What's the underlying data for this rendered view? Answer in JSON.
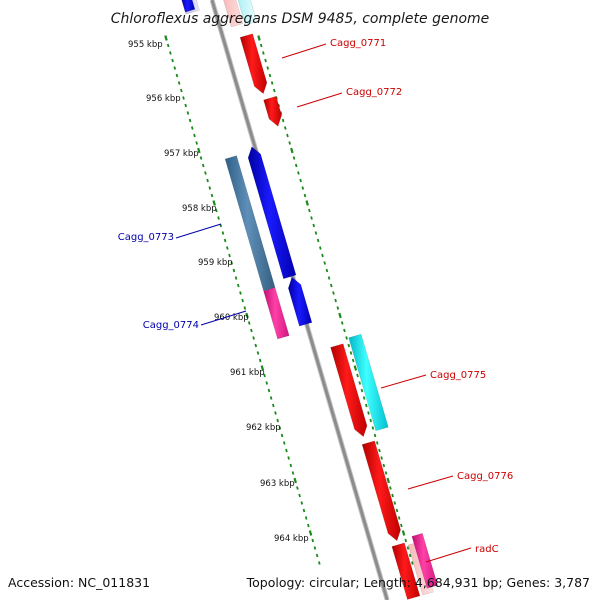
{
  "title": "Chloroflexus aggregans DSM 9485, complete genome",
  "footer": {
    "accession": "Accession: NC_011831",
    "summary": "Topology: circular; Length: 4,684,931 bp; Genes: 3,787"
  },
  "colors": {
    "backbone": "#8c8c8c",
    "tick": "#1a8a1a",
    "label_forward": "#cc0000",
    "label_reverse": "#0000aa"
  },
  "kbp_ticks": [
    {
      "label": "955 kbp",
      "kbp": 955
    },
    {
      "label": "956 kbp",
      "kbp": 956
    },
    {
      "label": "957 kbp",
      "kbp": 957
    },
    {
      "label": "958 kbp",
      "kbp": 958
    },
    {
      "label": "959 kbp",
      "kbp": 959
    },
    {
      "label": "960 kbp",
      "kbp": 960
    },
    {
      "label": "961 kbp",
      "kbp": 961
    },
    {
      "label": "962 kbp",
      "kbp": 962
    },
    {
      "label": "963 kbp",
      "kbp": 963
    },
    {
      "label": "964 kbp",
      "kbp": 964
    }
  ],
  "genes": [
    {
      "name": "Cagg_0771",
      "strand": "+",
      "color": "#ff0000"
    },
    {
      "name": "Cagg_0772",
      "strand": "+",
      "color": "#ff0000"
    },
    {
      "name": "Cagg_0773",
      "strand": "-",
      "color": "#0000ff"
    },
    {
      "name": "Cagg_0774",
      "strand": "-",
      "color": "#0000ff"
    },
    {
      "name": "Cagg_0775",
      "strand": "+",
      "color": "#ff0000"
    },
    {
      "name": "Cagg_0776",
      "strand": "+",
      "color": "#ff0000"
    },
    {
      "name": "radC",
      "strand": "+",
      "color": "#ff0000"
    }
  ]
}
